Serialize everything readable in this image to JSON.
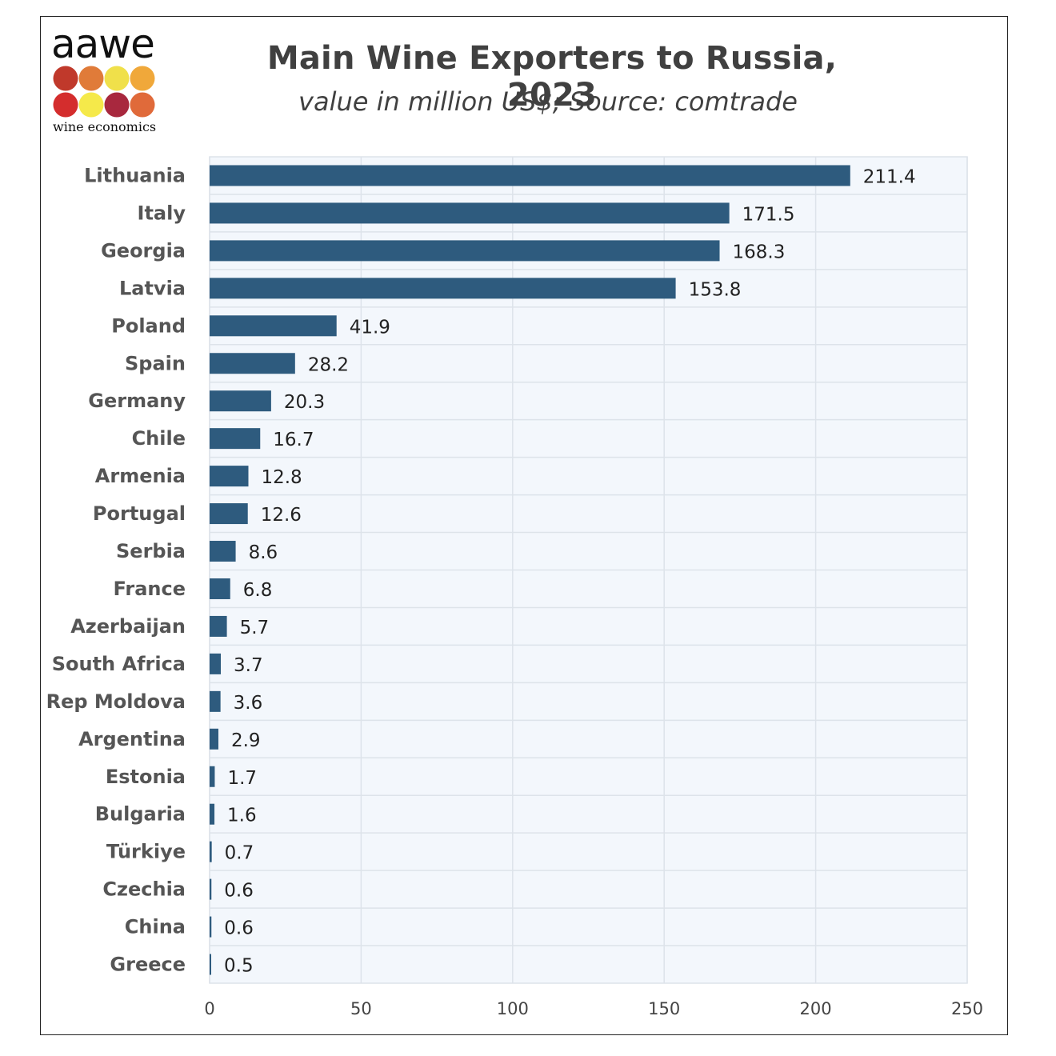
{
  "logo": {
    "word": "aawe",
    "tagline": "wine economics",
    "dot_colors": [
      "#c0392b",
      "#e07b39",
      "#f0e04a",
      "#f0a83a",
      "#d42d2d",
      "#f5e94a",
      "#a8283e",
      "#e06a3a"
    ]
  },
  "colors": {
    "bar": "#2e5b7e",
    "plot_bg": "#f3f7fc",
    "grid": "#dde3ea",
    "text": "#404040"
  },
  "chart_data": {
    "type": "bar",
    "orientation": "horizontal",
    "title": "Main Wine Exporters to Russia, 2023",
    "subtitle": "value in million US$; Source: comtrade",
    "categories": [
      "Lithuania",
      "Italy",
      "Georgia",
      "Latvia",
      "Poland",
      "Spain",
      "Germany",
      "Chile",
      "Armenia",
      "Portugal",
      "Serbia",
      "France",
      "Azerbaijan",
      "South Africa",
      "Rep Moldova",
      "Argentina",
      "Estonia",
      "Bulgaria",
      "Türkiye",
      "Czechia",
      "China",
      "Greece"
    ],
    "values": [
      211.4,
      171.5,
      168.3,
      153.8,
      41.9,
      28.2,
      20.3,
      16.7,
      12.8,
      12.6,
      8.6,
      6.8,
      5.7,
      3.7,
      3.6,
      2.9,
      1.7,
      1.6,
      0.7,
      0.6,
      0.6,
      0.5
    ],
    "value_labels": [
      "211.4",
      "171.5",
      "168.3",
      "153.8",
      "41.9",
      "28.2",
      "20.3",
      "16.7",
      "12.8",
      "12.6",
      "8.6",
      "6.8",
      "5.7",
      "3.7",
      "3.6",
      "2.9",
      "1.7",
      "1.6",
      "0.7",
      "0.6",
      "0.6",
      "0.5"
    ],
    "xlim": [
      0,
      250
    ],
    "xticks": [
      "0",
      "50",
      "100",
      "150",
      "200",
      "250"
    ],
    "grid": true,
    "xlabel": "",
    "ylabel": ""
  }
}
